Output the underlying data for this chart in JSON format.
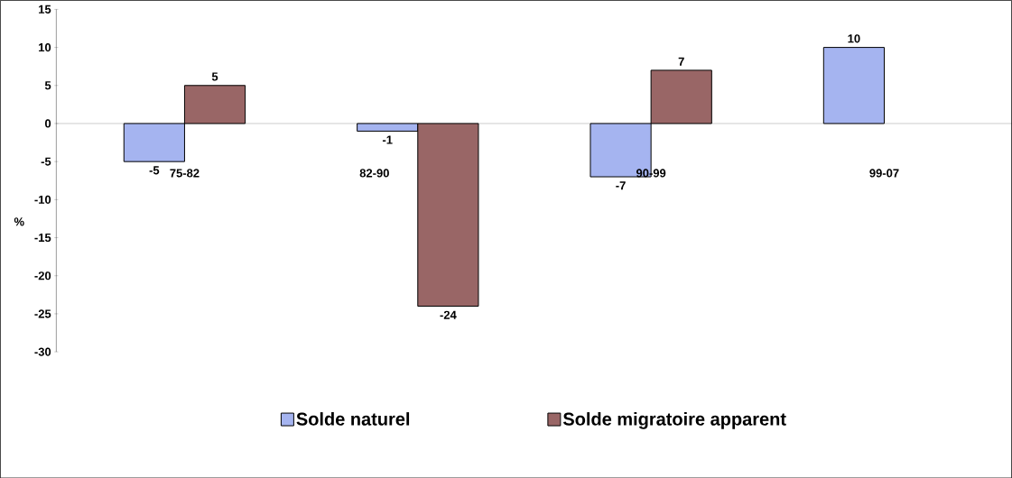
{
  "chart_data": {
    "type": "bar",
    "ylabel": "%",
    "categories": [
      "75-82",
      "82-90",
      "90-99",
      "99-07"
    ],
    "series": [
      {
        "name": "Solde naturel",
        "color": "#a5b4f0",
        "values": [
          -5,
          -1,
          -7,
          10
        ]
      },
      {
        "name": "Solde migratoire apparent",
        "color": "#996666",
        "values": [
          5,
          -24,
          7,
          null
        ]
      }
    ],
    "ylim": [
      -30,
      15
    ],
    "yticks": [
      -30,
      -25,
      -20,
      -15,
      -10,
      -5,
      0,
      5,
      10,
      15
    ],
    "data_labels": true,
    "legend": "bottom"
  }
}
